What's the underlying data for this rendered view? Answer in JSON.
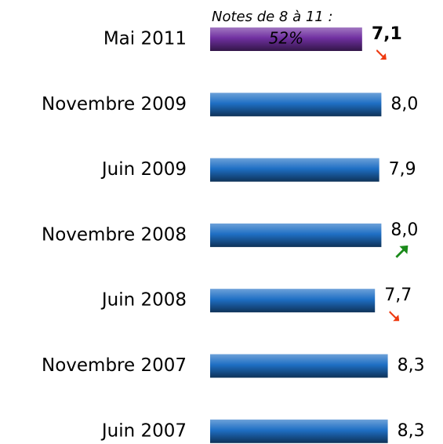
{
  "chart_data": {
    "type": "hbar",
    "annotation": "Notes de 8 à 11 :",
    "share": {
      "value": 52,
      "label": "52%"
    },
    "categories": [
      "Mai 2011",
      "Novembre 2009",
      "Juin 2009",
      "Novembre 2008",
      "Juin 2008",
      "Novembre 2007",
      "Juin 2007"
    ],
    "values": [
      7.1,
      8.0,
      7.9,
      8.0,
      7.7,
      8.3,
      8.3
    ],
    "value_labels": [
      "7,1",
      "8,0",
      "7,9",
      "8,0",
      "7,7",
      "8,3",
      "8,3"
    ],
    "colors": [
      "#7030a0",
      "#1f6fc4",
      "#1f6fc4",
      "#1f6fc4",
      "#1f6fc4",
      "#1f6fc4",
      "#1f6fc4"
    ],
    "trend": [
      "down",
      null,
      null,
      "up",
      "down",
      null,
      null
    ],
    "trend_colors": {
      "up": "#1a8a1a",
      "down": "#ee3a10"
    }
  }
}
